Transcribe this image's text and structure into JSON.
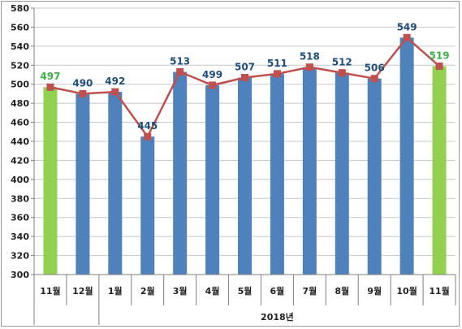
{
  "chart_data": {
    "type": "bar",
    "categories": [
      "11월",
      "12월",
      "1월",
      "2월",
      "3월",
      "4월",
      "5월",
      "6월",
      "7월",
      "8월",
      "9월",
      "10월",
      "11월"
    ],
    "values": [
      497,
      490,
      492,
      445,
      513,
      499,
      507,
      511,
      518,
      512,
      506,
      549,
      519
    ],
    "line_values": [
      497,
      490,
      492,
      445,
      513,
      499,
      507,
      511,
      518,
      512,
      506,
      549,
      519
    ],
    "highlight_indices": [
      0,
      12
    ],
    "group_label": "2018년",
    "group_start_index": 2,
    "ylim": [
      300,
      580
    ],
    "yticks": [
      300,
      320,
      340,
      360,
      380,
      400,
      420,
      440,
      460,
      480,
      500,
      520,
      540,
      560,
      580
    ],
    "grid": true,
    "legend": "none",
    "colors": {
      "bar": "#4f81bd",
      "bar_highlight": "#92d050",
      "line": "#c0504d",
      "label": "#1f4e79",
      "label_highlight": "#3cb043",
      "grid": "#c8c8c8",
      "axis": "#808080"
    }
  }
}
